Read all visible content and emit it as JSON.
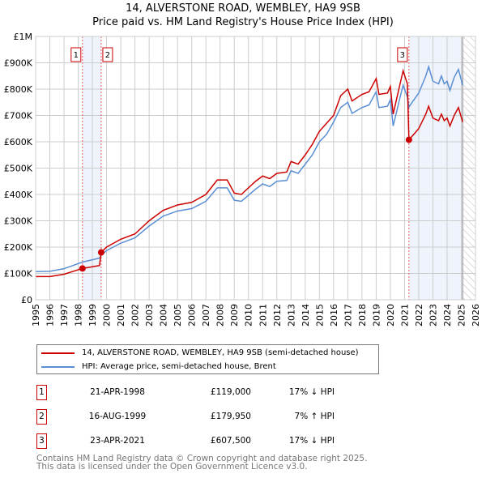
{
  "title": "14, ALVERSTONE ROAD, WEMBLEY, HA9 9SB",
  "subtitle": "Price paid vs. HM Land Registry's House Price Index (HPI)",
  "chart_data": {
    "type": "line",
    "xlim": [
      1995,
      2026
    ],
    "ylim": [
      0,
      1000000
    ],
    "x_ticks": [
      "1995",
      "1996",
      "1997",
      "1998",
      "1999",
      "2000",
      "2001",
      "2002",
      "2003",
      "2004",
      "2005",
      "2006",
      "2007",
      "2008",
      "2009",
      "2010",
      "2011",
      "2012",
      "2013",
      "2014",
      "2015",
      "2016",
      "2017",
      "2018",
      "2019",
      "2020",
      "2021",
      "2022",
      "2023",
      "2024",
      "2025",
      "2026"
    ],
    "y_ticks": [
      {
        "v": 0,
        "label": "£0"
      },
      {
        "v": 100000,
        "label": "£100K"
      },
      {
        "v": 200000,
        "label": "£200K"
      },
      {
        "v": 300000,
        "label": "£300K"
      },
      {
        "v": 400000,
        "label": "£400K"
      },
      {
        "v": 500000,
        "label": "£500K"
      },
      {
        "v": 600000,
        "label": "£600K"
      },
      {
        "v": 700000,
        "label": "£700K"
      },
      {
        "v": 800000,
        "label": "£800K"
      },
      {
        "v": 900000,
        "label": "£900K"
      },
      {
        "v": 1000000,
        "label": "£1M"
      }
    ],
    "grid": true,
    "x": [
      1995,
      1996,
      1997,
      1998.3,
      1999.5,
      1999.62,
      2000,
      2001,
      2002,
      2003,
      2004,
      2005,
      2006,
      2007,
      2007.8,
      2008.5,
      2009,
      2009.5,
      2010.5,
      2011,
      2011.5,
      2012,
      2012.7,
      2013,
      2013.5,
      2014,
      2014.5,
      2015,
      2015.5,
      2016,
      2016.5,
      2017,
      2017.3,
      2018,
      2018.5,
      2019,
      2019.2,
      2019.8,
      2020,
      2020.2,
      2020.6,
      2020.9,
      2021.2,
      2021.31,
      2021.6,
      2022,
      2022.5,
      2022.7,
      2023,
      2023.4,
      2023.6,
      2023.8,
      2024,
      2024.2,
      2024.5,
      2024.8,
      2025.1
    ],
    "series": [
      {
        "name": "14, ALVERSTONE ROAD, WEMBLEY, HA9 9SB (semi-detached house)",
        "color": "#cc0000",
        "values": [
          88000,
          88000,
          97000,
          119000,
          130000,
          179950,
          200000,
          230000,
          250000,
          300000,
          340000,
          360000,
          370000,
          400000,
          455000,
          455000,
          405000,
          400000,
          450000,
          470000,
          460000,
          480000,
          485000,
          525000,
          515000,
          550000,
          590000,
          640000,
          670000,
          700000,
          775000,
          800000,
          755000,
          780000,
          790000,
          840000,
          780000,
          785000,
          810000,
          705000,
          800000,
          870000,
          820000,
          607500,
          625000,
          650000,
          705000,
          735000,
          690000,
          680000,
          705000,
          680000,
          690000,
          660000,
          700000,
          730000,
          675000
        ]
      },
      {
        "name": "HPI: Average price, semi-detached house, Brent",
        "color": "#5b8fd4",
        "values": [
          107000,
          108000,
          118000,
          143000,
          158000,
          168000,
          187000,
          215000,
          235000,
          280000,
          318000,
          337000,
          346000,
          374000,
          425000,
          425000,
          378000,
          374000,
          420000,
          440000,
          430000,
          450000,
          453000,
          490000,
          480000,
          515000,
          550000,
          600000,
          628000,
          675000,
          730000,
          750000,
          708000,
          730000,
          740000,
          790000,
          730000,
          735000,
          760000,
          660000,
          750000,
          815000,
          770000,
          732000,
          755000,
          785000,
          850000,
          885000,
          830000,
          820000,
          850000,
          820000,
          830000,
          795000,
          845000,
          875000,
          815000
        ]
      }
    ],
    "sales": [
      {
        "id": "1",
        "x": 1998.3,
        "y": 119000
      },
      {
        "id": "2",
        "x": 1999.62,
        "y": 179950
      },
      {
        "id": "3",
        "x": 2021.31,
        "y": 607500
      }
    ],
    "shaded_ranges": [
      [
        1998.3,
        1999.62
      ],
      [
        2021.31,
        2025.1
      ]
    ],
    "hatched_from": 2025.1
  },
  "legend": [
    "14, ALVERSTONE ROAD, WEMBLEY, HA9 9SB (semi-detached house)",
    "HPI: Average price, semi-detached house, Brent"
  ],
  "transactions": [
    {
      "id": "1",
      "date": "21-APR-1998",
      "price": "£119,000",
      "hpi": "17% ↓ HPI"
    },
    {
      "id": "2",
      "date": "16-AUG-1999",
      "price": "£179,950",
      "hpi": "7% ↑ HPI"
    },
    {
      "id": "3",
      "date": "23-APR-2021",
      "price": "£607,500",
      "hpi": "17% ↓ HPI"
    }
  ],
  "footer": [
    "Contains HM Land Registry data © Crown copyright and database right 2025.",
    "This data is licensed under the Open Government Licence v3.0."
  ]
}
